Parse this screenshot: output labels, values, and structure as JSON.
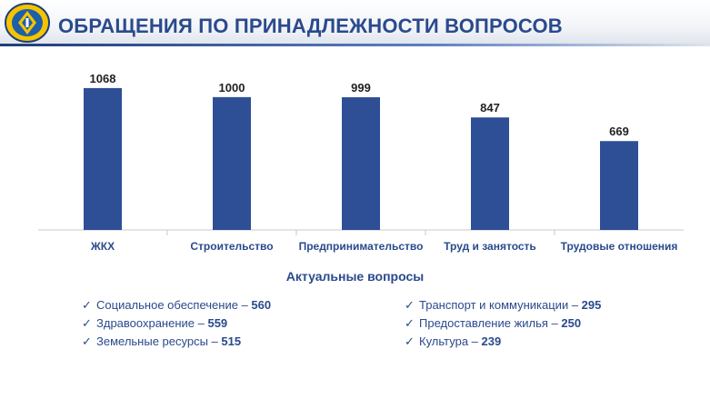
{
  "header": {
    "title": "ОБРАЩЕНИЯ ПО ПРИНАДЛЕЖНОСТИ ВОПРОСОВ",
    "logo_icon": "emblem-icon",
    "accent_color": "#2a4a8c"
  },
  "chart_data": {
    "type": "bar",
    "categories": [
      "ЖКХ",
      "Строительство",
      "Предпринимательство",
      "Труд и занятость",
      "Трудовые отношения"
    ],
    "values": [
      1068,
      1000,
      999,
      847,
      669
    ],
    "value_labels": [
      "1068",
      "1000",
      "999",
      "847",
      "669"
    ],
    "bar_color": "#2e4f96",
    "ylim": [
      0,
      1300
    ],
    "grid": false,
    "legend": "none"
  },
  "topics": {
    "title": "Актуальные вопросы",
    "check_icon": "checkmark-icon",
    "left": [
      {
        "label": "Социальное обеспечение – ",
        "value": "560"
      },
      {
        "label": "Здравоохранение – ",
        "value": "559"
      },
      {
        "label": "Земельные ресурсы – ",
        "value": "515"
      }
    ],
    "right": [
      {
        "label": "Транспорт и коммуникации – ",
        "value": "295"
      },
      {
        "label": "Предоставление жилья – ",
        "value": "250"
      },
      {
        "label": "Культура – ",
        "value": "239"
      }
    ]
  }
}
